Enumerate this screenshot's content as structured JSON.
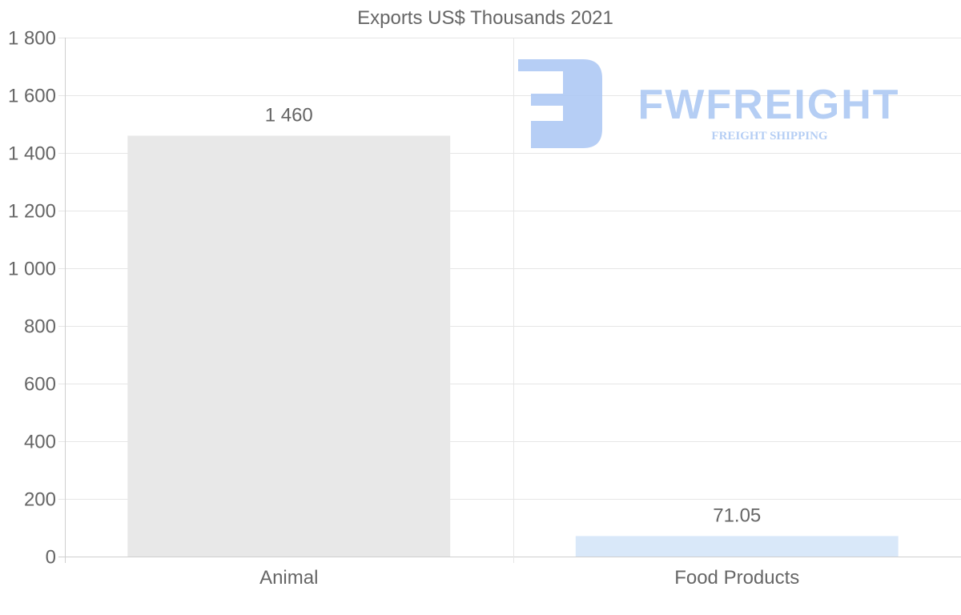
{
  "chart_data": {
    "type": "bar",
    "title": "Exports US$ Thousands 2021",
    "categories": [
      "Animal",
      "Food Products"
    ],
    "values": [
      1460,
      71.05
    ],
    "value_labels": [
      "1 460",
      "71.05"
    ],
    "bar_colors": [
      "#e8e8e8",
      "#d9e8f9"
    ],
    "xlabel": "",
    "ylabel": "",
    "ylim": [
      0,
      1800
    ],
    "yticks": [
      0,
      200,
      400,
      600,
      800,
      1000,
      1200,
      1400,
      1600,
      1800
    ],
    "ytick_labels": [
      "0",
      "200",
      "400",
      "600",
      "800",
      "1 000",
      "1 200",
      "1 400",
      "1 600",
      "1 800"
    ],
    "grid": true,
    "legend": "none"
  },
  "watermark": {
    "brand": "FWFREIGHT",
    "tagline": "FREIGHT SHIPPING",
    "color": "#a9c6f3"
  }
}
